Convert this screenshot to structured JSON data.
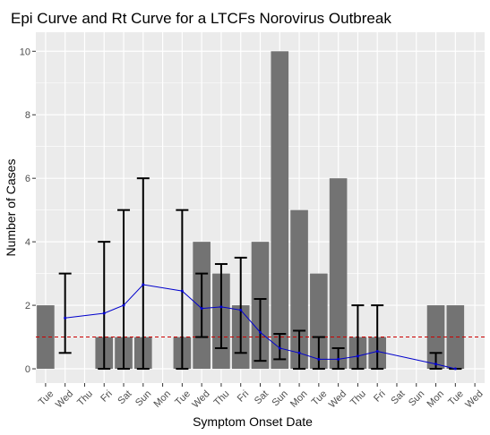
{
  "chart_data": {
    "type": "bar",
    "title": "Epi Curve and Rt Curve for a LTCFs Norovirus Outbreak",
    "xlabel": "Symptom Onset Date",
    "ylabel": "Number of Cases",
    "ylim": [
      -0.45,
      10.6
    ],
    "yticks": [
      0,
      2,
      4,
      6,
      8,
      10
    ],
    "grid": true,
    "categories": [
      "Tue",
      "Wed",
      "Thu",
      "Fri",
      "Sat",
      "Sun",
      "Mon",
      "Tue",
      "Wed",
      "Thu",
      "Fri",
      "Sat",
      "Sun",
      "Mon",
      "Tue",
      "Wed",
      "Thu",
      "Fri",
      "Sat",
      "Sun",
      "Mon",
      "Tue",
      "Wed"
    ],
    "series": [
      {
        "type": "bar",
        "color": "#737373",
        "values": [
          2,
          0,
          0,
          1,
          1,
          1,
          0,
          1,
          4,
          3,
          2,
          4,
          10,
          5,
          3,
          6,
          1,
          1,
          0,
          0,
          2,
          2,
          0
        ]
      },
      {
        "type": "line",
        "color": "#0000cc",
        "points": [
          {
            "x": 1,
            "y": 1.6,
            "lo": 0.5,
            "hi": 3.0
          },
          {
            "x": 3,
            "y": 1.75,
            "lo": 0.0,
            "hi": 4.0
          },
          {
            "x": 4,
            "y": 2.0,
            "lo": 0.0,
            "hi": 5.0
          },
          {
            "x": 5,
            "y": 2.65,
            "lo": 0.0,
            "hi": 6.0
          },
          {
            "x": 7,
            "y": 2.45,
            "lo": 0.0,
            "hi": 5.0
          },
          {
            "x": 8,
            "y": 1.9,
            "lo": 1.0,
            "hi": 3.0
          },
          {
            "x": 9,
            "y": 1.95,
            "lo": 0.65,
            "hi": 3.3
          },
          {
            "x": 10,
            "y": 1.85,
            "lo": 0.5,
            "hi": 3.5
          },
          {
            "x": 11,
            "y": 1.15,
            "lo": 0.25,
            "hi": 2.2
          },
          {
            "x": 12,
            "y": 0.65,
            "lo": 0.3,
            "hi": 1.1
          },
          {
            "x": 13,
            "y": 0.5,
            "lo": 0.0,
            "hi": 1.2
          },
          {
            "x": 14,
            "y": 0.3,
            "lo": 0.0,
            "hi": 1.0
          },
          {
            "x": 15,
            "y": 0.3,
            "lo": 0.0,
            "hi": 0.65
          },
          {
            "x": 16,
            "y": 0.4,
            "lo": 0.0,
            "hi": 2.0
          },
          {
            "x": 17,
            "y": 0.55,
            "lo": 0.0,
            "hi": 2.0
          },
          {
            "x": 20,
            "y": 0.15,
            "lo": 0.0,
            "hi": 0.5
          },
          {
            "x": 21,
            "y": 0.0,
            "lo": 0.0,
            "hi": 0.0
          }
        ]
      }
    ],
    "reference_line": {
      "y": 1,
      "color": "#cc0000",
      "style": "dashed"
    },
    "panel_background": "#ebebeb",
    "grid_color": "#ffffff",
    "errorbar_color": "#000000"
  }
}
